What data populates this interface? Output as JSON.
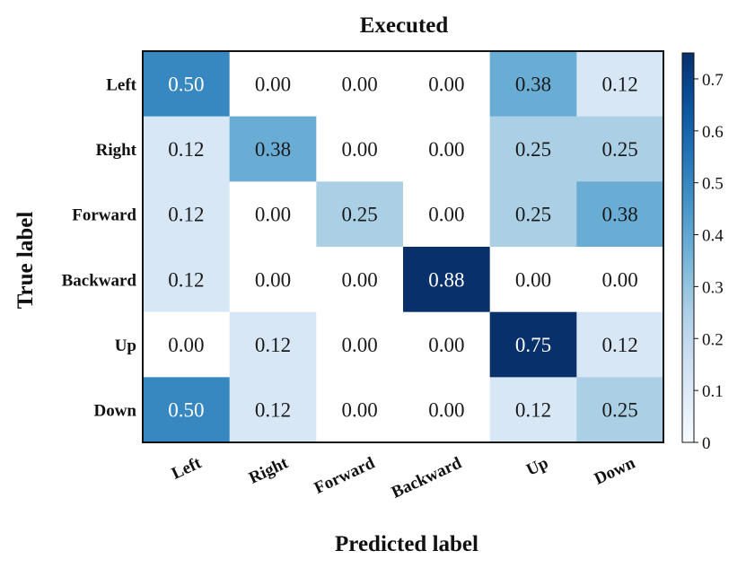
{
  "chart_data": {
    "type": "heatmap",
    "title": "Executed",
    "xlabel": "Predicted label",
    "ylabel": "True label",
    "x_categories": [
      "Left",
      "Right",
      "Forward",
      "Backward",
      "Up",
      "Down"
    ],
    "y_categories": [
      "Left",
      "Right",
      "Forward",
      "Backward",
      "Up",
      "Down"
    ],
    "values": [
      [
        0.5,
        0.0,
        0.0,
        0.0,
        0.38,
        0.12
      ],
      [
        0.12,
        0.38,
        0.0,
        0.0,
        0.25,
        0.25
      ],
      [
        0.12,
        0.0,
        0.25,
        0.0,
        0.25,
        0.38
      ],
      [
        0.12,
        0.0,
        0.0,
        0.88,
        0.0,
        0.0
      ],
      [
        0.0,
        0.12,
        0.0,
        0.0,
        0.75,
        0.12
      ],
      [
        0.5,
        0.12,
        0.0,
        0.0,
        0.12,
        0.25
      ]
    ],
    "colorbar": {
      "min": 0,
      "max": 0.75,
      "ticks": [
        0,
        0.1,
        0.2,
        0.3,
        0.4,
        0.5,
        0.6,
        0.7
      ],
      "tick_labels": [
        "0",
        "0.1",
        "0.2",
        "0.3",
        "0.4",
        "0.5",
        "0.6",
        "0.7"
      ]
    },
    "colormap": "Blues",
    "colors": {
      "low": "#f7fbff",
      "high": "#08306b",
      "text_dark": "#1a1a1a",
      "text_light": "#ffffff"
    }
  }
}
